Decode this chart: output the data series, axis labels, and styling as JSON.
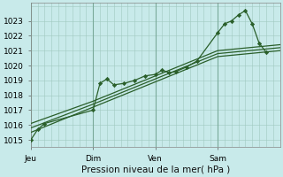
{
  "background_color": "#c8eaea",
  "grid_color": "#a0c8c0",
  "line_color": "#2a5f2a",
  "marker_color": "#2a5f2a",
  "xlabel": "Pression niveau de la mer( hPa )",
  "ylim": [
    1014.5,
    1024.2
  ],
  "yticks": [
    1015,
    1016,
    1017,
    1018,
    1019,
    1020,
    1021,
    1022,
    1023
  ],
  "day_labels": [
    "Jeu",
    "Dim",
    "Ven",
    "Sam"
  ],
  "day_positions": [
    0,
    36,
    72,
    108
  ],
  "xmax": 144,
  "series": [
    {
      "x": [
        0,
        4,
        8,
        36,
        40,
        44,
        48,
        54,
        60,
        66,
        72,
        76,
        80,
        84,
        90,
        96,
        108,
        112,
        116,
        120,
        124,
        128,
        132,
        136
      ],
      "y": [
        1015.0,
        1015.7,
        1016.1,
        1017.0,
        1018.8,
        1019.1,
        1018.7,
        1018.8,
        1019.0,
        1019.3,
        1019.4,
        1019.7,
        1019.5,
        1019.6,
        1019.9,
        1020.3,
        1022.2,
        1022.8,
        1023.0,
        1023.4,
        1023.7,
        1022.8,
        1021.5,
        1020.9
      ],
      "with_markers": true
    },
    {
      "x": [
        0,
        36,
        72,
        108,
        144
      ],
      "y": [
        1015.5,
        1017.2,
        1018.9,
        1020.6,
        1021.0
      ],
      "with_markers": false
    },
    {
      "x": [
        0,
        36,
        72,
        108,
        144
      ],
      "y": [
        1015.8,
        1017.4,
        1019.1,
        1020.8,
        1021.2
      ],
      "with_markers": false
    },
    {
      "x": [
        0,
        36,
        72,
        108,
        144
      ],
      "y": [
        1016.1,
        1017.6,
        1019.3,
        1021.0,
        1021.4
      ],
      "with_markers": false
    }
  ],
  "tick_label_fontsize": 6.5,
  "axis_label_fontsize": 7.5
}
